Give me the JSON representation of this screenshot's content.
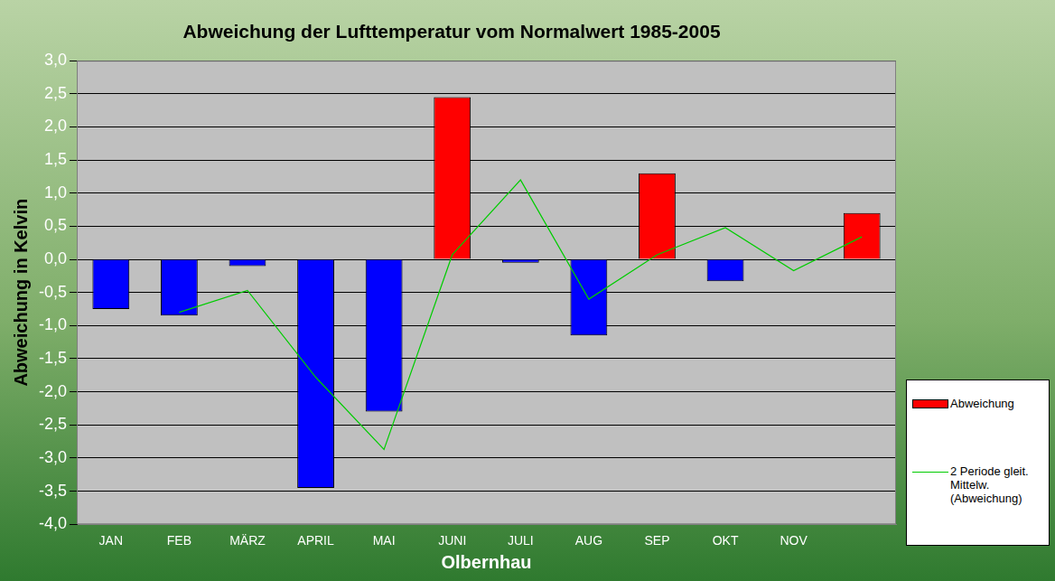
{
  "chart_data": {
    "type": "bar",
    "title": "Abweichung der Lufttemperatur vom Normalwert 1985-2005",
    "x_label": "Olbernhau",
    "y_label": "Abweichung in Kelvin",
    "categories": [
      "JAN",
      "FEB",
      "MÄRZ",
      "APRIL",
      "MAI",
      "JUNI",
      "JULI",
      "AUG",
      "SEP",
      "OKT",
      "NOV",
      null
    ],
    "series": [
      {
        "name": "Abweichung",
        "type": "bar",
        "color": "#ff0000",
        "colors": [
          "#0000ff",
          "#0000ff",
          "#0000ff",
          "#0000ff",
          "#0000ff",
          "#ff0000",
          "#0000ff",
          "#0000ff",
          "#ff0000",
          "#0000ff",
          "#0000ff",
          "#ff0000"
        ],
        "values": [
          -0.75,
          -0.85,
          -0.1,
          -3.45,
          -2.3,
          2.45,
          -0.05,
          -1.15,
          1.3,
          -0.33,
          -0.02,
          0.7
        ]
      },
      {
        "name": "2 Periode gleit. Mittelw. (Abweichung)",
        "type": "line",
        "color": "#00cc00",
        "values": [
          null,
          -0.8,
          -0.47,
          -1.78,
          -2.87,
          0.07,
          1.2,
          -0.6,
          0.07,
          0.48,
          -0.17,
          0.34
        ]
      }
    ],
    "ylim": [
      -4,
      3
    ],
    "yticks": [
      {
        "value": -4,
        "label": "-4,0"
      },
      {
        "value": -3.5,
        "label": "-3,5"
      },
      {
        "value": -3,
        "label": "-3,0"
      },
      {
        "value": -2.5,
        "label": "-2,5"
      },
      {
        "value": -2,
        "label": "-2,0"
      },
      {
        "value": -1.5,
        "label": "-1,5"
      },
      {
        "value": -1,
        "label": "-1,0"
      },
      {
        "value": -0.5,
        "label": "-0,5"
      },
      {
        "value": 0,
        "label": "0,0"
      },
      {
        "value": 0.5,
        "label": "0,5"
      },
      {
        "value": 1,
        "label": "1,0"
      },
      {
        "value": 1.5,
        "label": "1,5"
      },
      {
        "value": 2,
        "label": "2,0"
      },
      {
        "value": 2.5,
        "label": "2,5"
      },
      {
        "value": 3,
        "label": "3,0"
      }
    ],
    "grid": true,
    "legend": "right"
  }
}
